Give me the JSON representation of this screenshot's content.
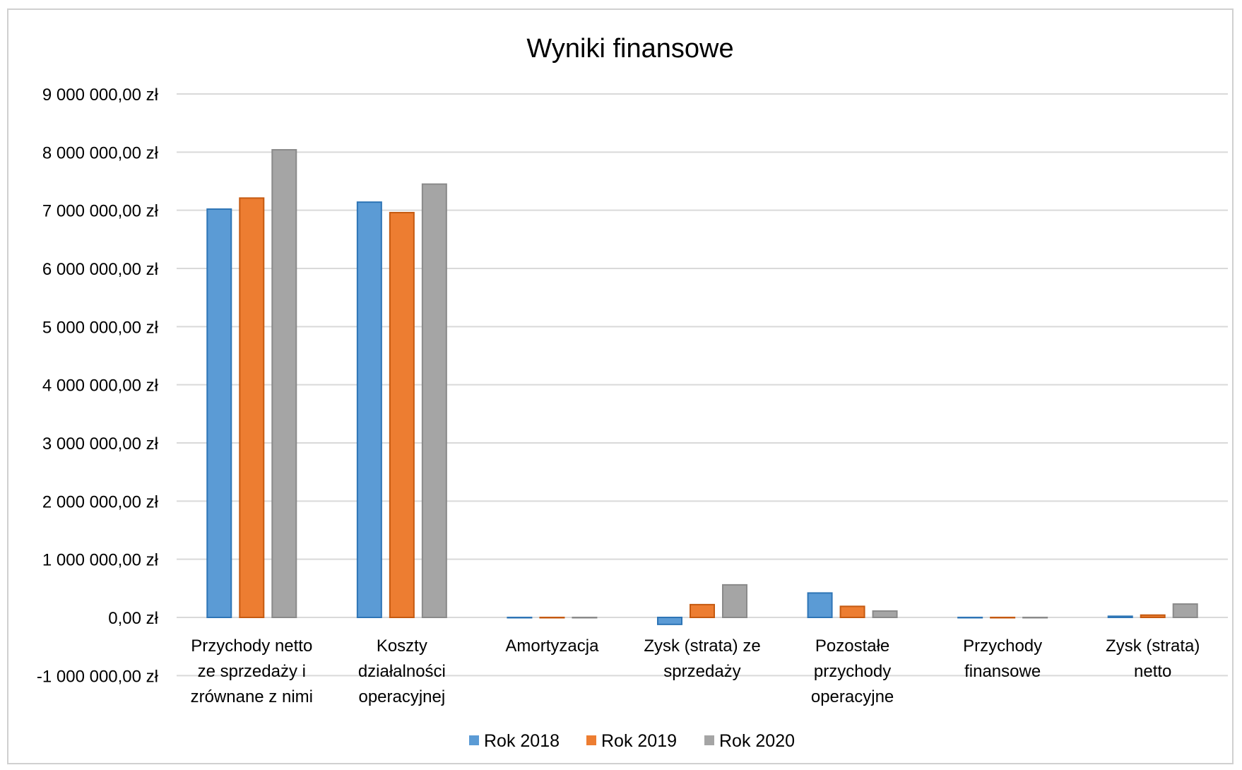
{
  "chart_data": {
    "type": "bar",
    "title": "Wyniki finansowe",
    "xlabel": "",
    "ylabel": "",
    "ylim": [
      -1000000,
      9000000
    ],
    "yticks": [
      -1000000,
      0,
      1000000,
      2000000,
      3000000,
      4000000,
      5000000,
      6000000,
      7000000,
      8000000,
      9000000
    ],
    "ytick_labels": [
      "-1 000 000,00 zł",
      "0,00 zł",
      "1 000 000,00 zł",
      "2 000 000,00 zł",
      "3 000 000,00 zł",
      "4 000 000,00 zł",
      "5 000 000,00 zł",
      "6 000 000,00 zł",
      "7 000 000,00 zł",
      "8 000 000,00 zł",
      "9 000 000,00 zł"
    ],
    "grid": true,
    "legend_position": "bottom",
    "categories": [
      [
        "Przychody netto",
        "ze sprzedaży i",
        "zrównane z nimi"
      ],
      [
        "Koszty",
        "działalności",
        "operacyjnej"
      ],
      [
        "Amortyzacja"
      ],
      [
        "Zysk (strata) ze",
        "sprzedaży"
      ],
      [
        "Pozostałe",
        "przychody",
        "operacyjne"
      ],
      [
        "Przychody",
        "finansowe"
      ],
      [
        "Zysk (strata)",
        "netto"
      ]
    ],
    "series": [
      {
        "name": "Rok 2018",
        "color": "#5b9bd5",
        "values": [
          7020000,
          7140000,
          0,
          -120000,
          420000,
          0,
          20000
        ]
      },
      {
        "name": "Rok 2019",
        "color": "#ed7d31",
        "values": [
          7210000,
          6960000,
          0,
          220000,
          190000,
          0,
          40000
        ]
      },
      {
        "name": "Rok 2020",
        "color": "#a5a5a5",
        "values": [
          8040000,
          7450000,
          0,
          560000,
          110000,
          0,
          230000
        ]
      }
    ]
  }
}
